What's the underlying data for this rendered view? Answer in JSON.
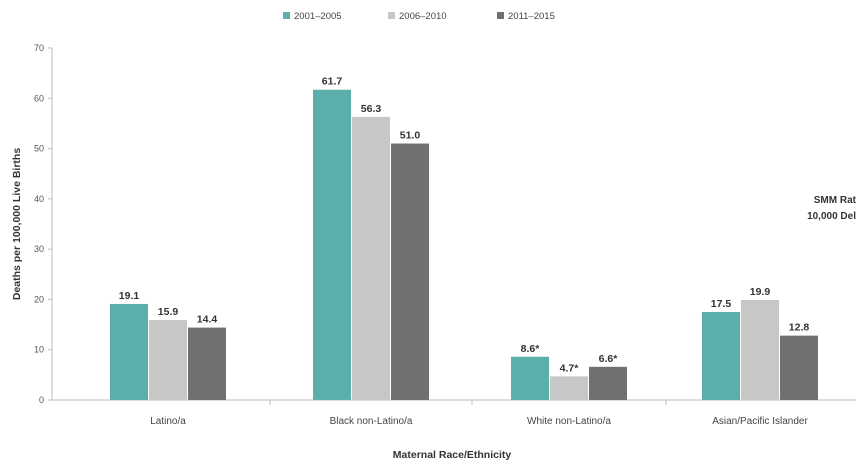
{
  "chart_data": {
    "type": "bar",
    "title": "",
    "xlabel": "Maternal Race/Ethnicity",
    "ylabel": "Deaths per 100,000 Live Births",
    "ylim": [
      0,
      70
    ],
    "yticks": [
      0,
      10,
      20,
      30,
      40,
      50,
      60,
      70
    ],
    "grid": false,
    "legend_position": "top-center",
    "categories": [
      "Latino/a",
      "Black non-Latino/a",
      "White non-Latino/a",
      "Asian/Pacific Islander"
    ],
    "series": [
      {
        "name": "2001–2005",
        "color": "#5aafab",
        "values": [
          19.1,
          61.7,
          8.6,
          17.5
        ],
        "labels": [
          "19.1",
          "61.7",
          "8.6*",
          "17.5"
        ]
      },
      {
        "name": "2006–2010",
        "color": "#c6c8c8",
        "values": [
          15.9,
          56.3,
          4.7,
          19.9
        ],
        "labels": [
          "15.9",
          "56.3",
          "4.7*",
          "19.9"
        ]
      },
      {
        "name": "2011–2015",
        "color": "#707070",
        "values": [
          14.4,
          51.0,
          6.6,
          12.8
        ],
        "labels": [
          "14.4",
          "51.0",
          "6.6*",
          "12.8"
        ]
      }
    ],
    "annotation_lines": [
      "SMM Rat",
      "10,000 Del"
    ]
  }
}
